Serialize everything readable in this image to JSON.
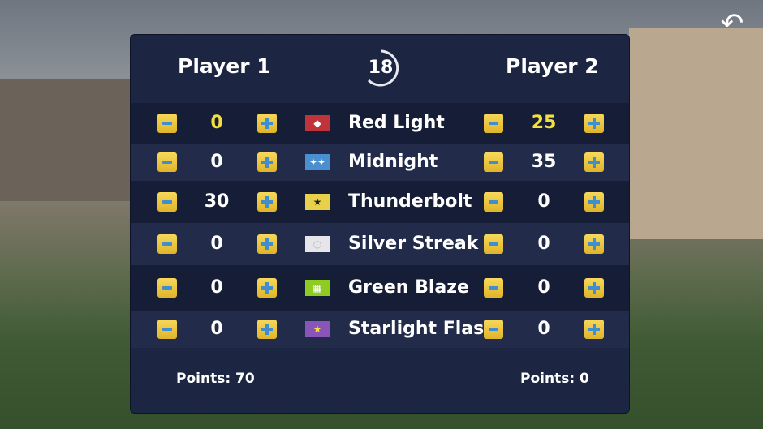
{
  "timer": "18",
  "players": [
    {
      "name": "Player 1",
      "points_label": "Points: 70"
    },
    {
      "name": "Player 2",
      "points_label": "Points: 0"
    }
  ],
  "horses": [
    {
      "name": "Red Light",
      "p1": "0",
      "p2": "25",
      "flag_color": "#c0333a",
      "flag_icon": "diamond",
      "highlight": true
    },
    {
      "name": "Midnight",
      "p1": "0",
      "p2": "35",
      "flag_color": "#4a8fd0",
      "flag_icon": "stars",
      "highlight": false
    },
    {
      "name": "Thunderbolt",
      "p1": "30",
      "p2": "0",
      "flag_color": "#e8d04a",
      "flag_icon": "star",
      "highlight": false
    },
    {
      "name": "Silver Streak",
      "p1": "0",
      "p2": "0",
      "flag_color": "#e6e6ea",
      "flag_icon": "circle",
      "highlight": false
    },
    {
      "name": "Green Blaze",
      "p1": "0",
      "p2": "0",
      "flag_color": "#8fcc22",
      "flag_icon": "checker",
      "highlight": false
    },
    {
      "name": "Starlight Flash",
      "p1": "0",
      "p2": "0",
      "flag_color": "#8a55b8",
      "flag_icon": "star",
      "highlight": false
    }
  ],
  "colors": {
    "highlight": "#f3e040",
    "panel": "#1c2643",
    "button": "#f0c640"
  },
  "icons": {
    "back": "back-arrow-icon",
    "minus": "minus-icon",
    "plus": "plus-icon"
  }
}
